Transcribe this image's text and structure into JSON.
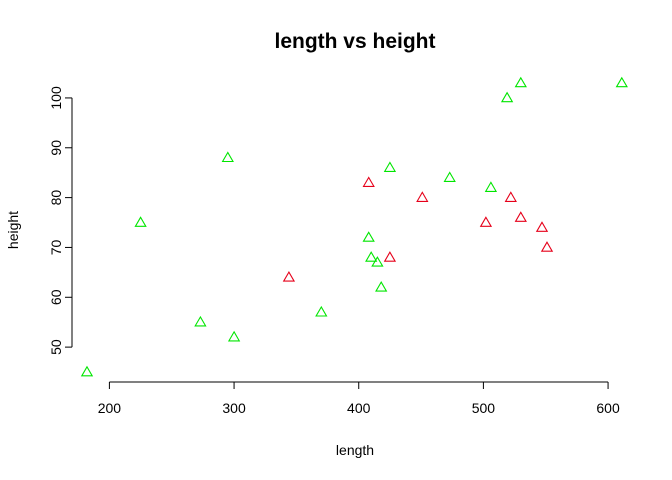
{
  "chart_data": {
    "type": "scatter",
    "title": "length vs height",
    "xlabel": "length",
    "ylabel": "height",
    "xlim": [
      170,
      620
    ],
    "ylim": [
      43,
      104
    ],
    "xticks": [
      200,
      300,
      400,
      500,
      600
    ],
    "yticks": [
      50,
      60,
      70,
      80,
      90,
      100
    ],
    "grid": false,
    "marker": "triangle-open",
    "colors": {
      "red": "#e6001a",
      "green": "#00e600"
    },
    "points": [
      {
        "x": 182,
        "y": 45,
        "color": "green"
      },
      {
        "x": 225,
        "y": 75,
        "color": "green"
      },
      {
        "x": 273,
        "y": 55,
        "color": "green"
      },
      {
        "x": 295,
        "y": 88,
        "color": "green"
      },
      {
        "x": 300,
        "y": 52,
        "color": "green"
      },
      {
        "x": 370,
        "y": 57,
        "color": "green"
      },
      {
        "x": 408,
        "y": 72,
        "color": "green"
      },
      {
        "x": 410,
        "y": 68,
        "color": "green"
      },
      {
        "x": 415,
        "y": 67,
        "color": "green"
      },
      {
        "x": 418,
        "y": 62,
        "color": "green"
      },
      {
        "x": 425,
        "y": 86,
        "color": "green"
      },
      {
        "x": 473,
        "y": 84,
        "color": "green"
      },
      {
        "x": 506,
        "y": 82,
        "color": "green"
      },
      {
        "x": 519,
        "y": 100,
        "color": "green"
      },
      {
        "x": 530,
        "y": 103,
        "color": "green"
      },
      {
        "x": 611,
        "y": 103,
        "color": "green"
      },
      {
        "x": 344,
        "y": 64,
        "color": "red"
      },
      {
        "x": 408,
        "y": 83,
        "color": "red"
      },
      {
        "x": 425,
        "y": 68,
        "color": "red"
      },
      {
        "x": 451,
        "y": 80,
        "color": "red"
      },
      {
        "x": 502,
        "y": 75,
        "color": "red"
      },
      {
        "x": 522,
        "y": 80,
        "color": "red"
      },
      {
        "x": 530,
        "y": 76,
        "color": "red"
      },
      {
        "x": 547,
        "y": 74,
        "color": "red"
      },
      {
        "x": 551,
        "y": 70,
        "color": "red"
      }
    ]
  }
}
